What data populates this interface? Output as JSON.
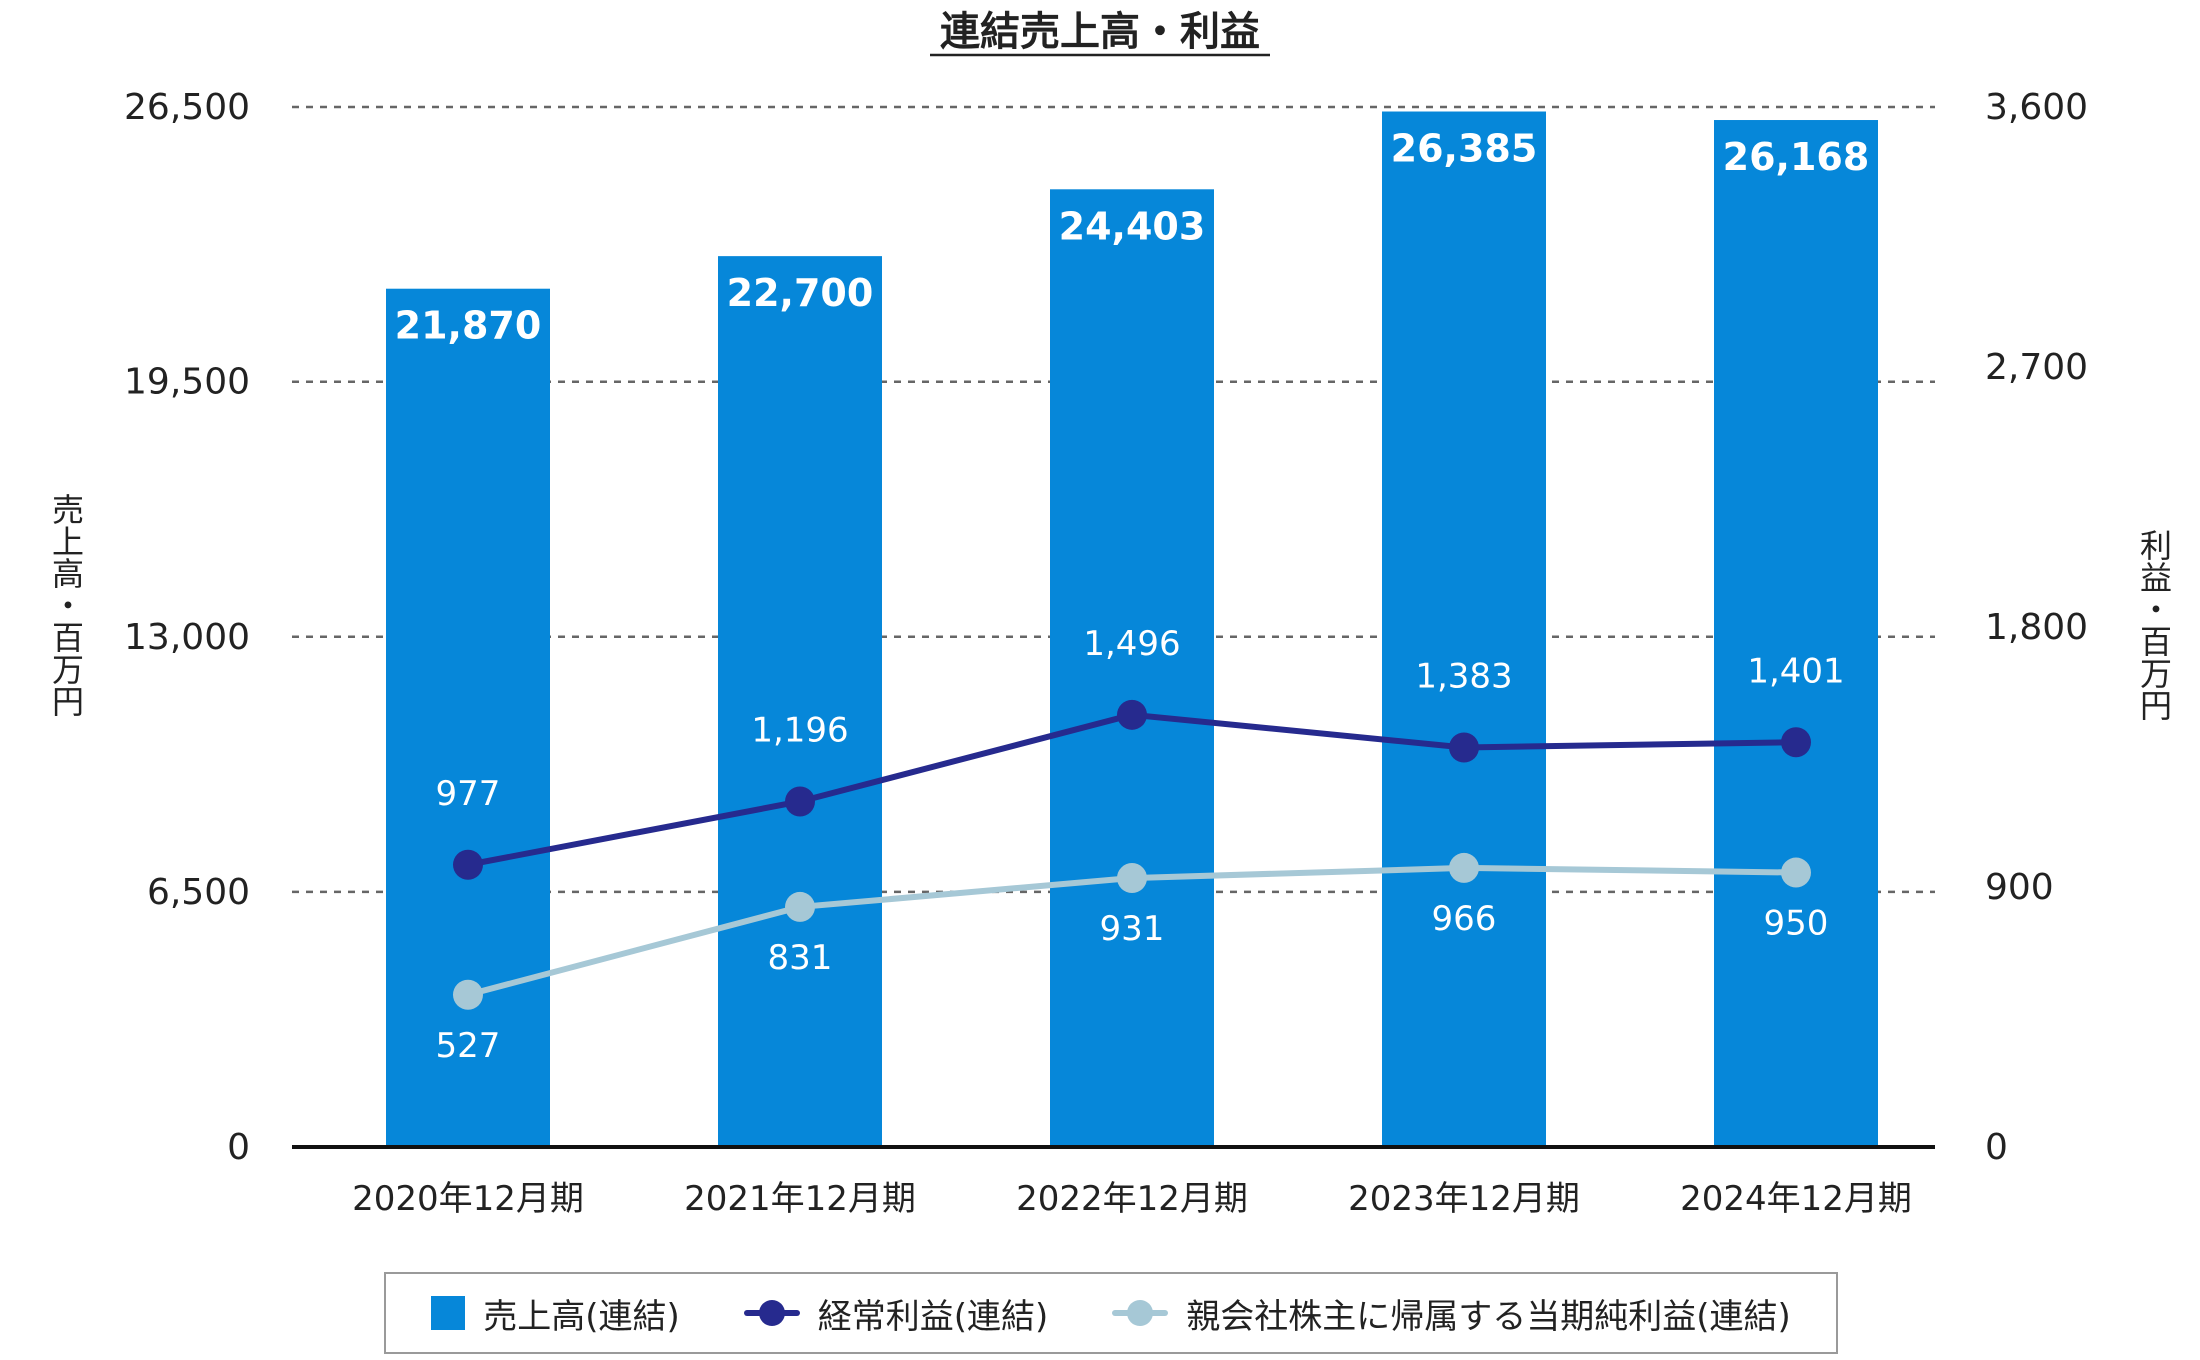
{
  "chart_data": {
    "type": "bar",
    "title": "連結売上高・利益",
    "categories": [
      "2020年12月期",
      "2021年12月期",
      "2022年12月期",
      "2023年12月期",
      "2024年12月期"
    ],
    "series": [
      {
        "name": "売上高(連結)",
        "type": "bar",
        "axis": "left",
        "color": "#0687d9",
        "values": [
          21870,
          22700,
          24403,
          26385,
          26168
        ],
        "labels": [
          "21,870",
          "22,700",
          "24,403",
          "26,385",
          "26,168"
        ]
      },
      {
        "name": "経常利益(連結)",
        "type": "line",
        "axis": "right",
        "color": "#262a8e",
        "values": [
          977,
          1196,
          1496,
          1383,
          1401
        ],
        "labels": [
          "977",
          "1,196",
          "1,496",
          "1,383",
          "1,401"
        ]
      },
      {
        "name": "親会社株主に帰属する当期純利益(連結)",
        "type": "line",
        "axis": "right",
        "color": "#a6c8d6",
        "values": [
          527,
          831,
          931,
          966,
          950
        ],
        "labels": [
          "527",
          "831",
          "931",
          "966",
          "950"
        ]
      }
    ],
    "ylabel": "売上高・百万円",
    "y2label": "利益・百万円",
    "ylim": [
      0,
      26500
    ],
    "y2lim": [
      0,
      3600
    ],
    "yticks": [
      0,
      6500,
      13000,
      19500,
      26500
    ],
    "ytick_labels": [
      "0",
      "6,500",
      "13,000",
      "19,500",
      "26,500"
    ],
    "y2ticks": [
      0,
      900,
      1800,
      2700,
      3600
    ],
    "y2tick_labels": [
      "0",
      "900",
      "1,800",
      "2,700",
      "3,600"
    ],
    "grid": "dashed horizontal",
    "legend_position": "bottom"
  }
}
